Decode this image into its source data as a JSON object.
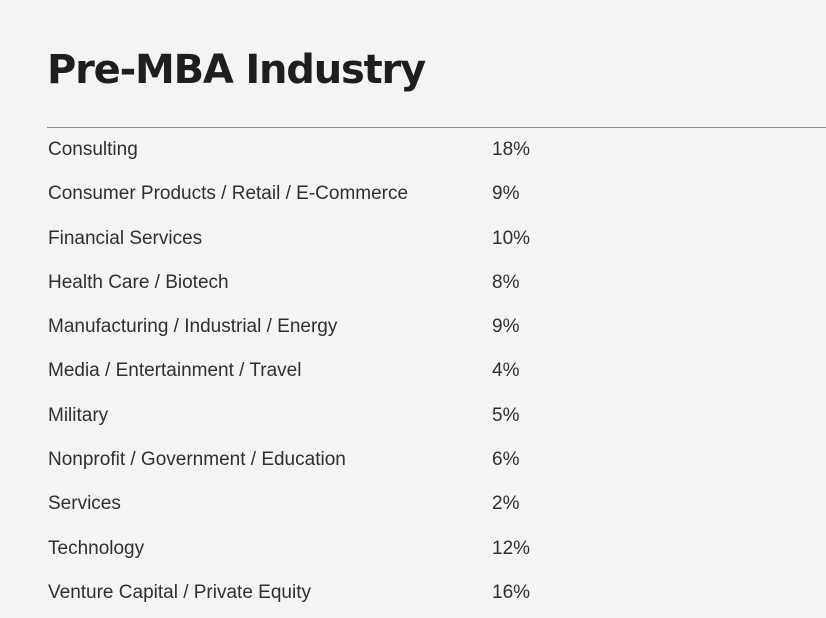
{
  "title": "Pre-MBA Industry",
  "rows": [
    {
      "industry": "Consulting",
      "percent": "18%"
    },
    {
      "industry": "Consumer Products / Retail / E-Commerce",
      "percent": "9%"
    },
    {
      "industry": "Financial Services",
      "percent": "10%"
    },
    {
      "industry": "Health Care / Biotech",
      "percent": "8%"
    },
    {
      "industry": "Manufacturing / Industrial / Energy",
      "percent": "9%"
    },
    {
      "industry": "Media / Entertainment / Travel",
      "percent": "4%"
    },
    {
      "industry": "Military",
      "percent": "5%"
    },
    {
      "industry": "Nonprofit / Government / Education",
      "percent": "6%"
    },
    {
      "industry": "Services",
      "percent": "2%"
    },
    {
      "industry": "Technology",
      "percent": "12%"
    },
    {
      "industry": "Venture Capital / Private Equity",
      "percent": "16%"
    }
  ]
}
